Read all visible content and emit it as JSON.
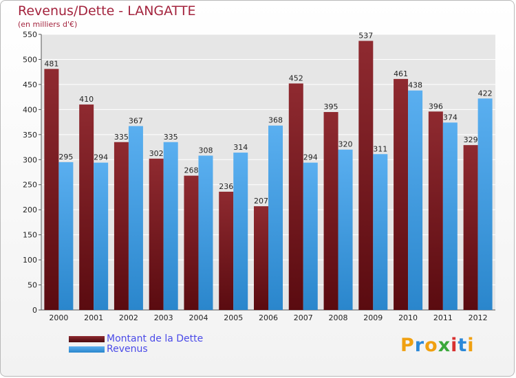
{
  "chart_data": {
    "type": "bar",
    "title": "Revenus/Dette - LANGATTE",
    "subtitle": "(en milliers d'€)",
    "categories": [
      "2000",
      "2001",
      "2002",
      "2003",
      "2004",
      "2005",
      "2006",
      "2007",
      "2008",
      "2009",
      "2010",
      "2011",
      "2012"
    ],
    "series": [
      {
        "name": "Montant de la Dette",
        "color": "#7a1a1f",
        "values": [
          481,
          410,
          335,
          302,
          268,
          236,
          207,
          452,
          395,
          537,
          461,
          396,
          329
        ]
      },
      {
        "name": "Revenus",
        "color": "#3d9be0",
        "values": [
          295,
          294,
          367,
          335,
          308,
          314,
          368,
          294,
          320,
          311,
          438,
          374,
          422
        ]
      }
    ],
    "ylim": [
      0,
      550
    ],
    "yticks": [
      0,
      50,
      100,
      150,
      200,
      250,
      300,
      350,
      400,
      450,
      500,
      550
    ],
    "grid": true,
    "xlabel": "",
    "ylabel": "",
    "legend_position": "bottom-left"
  },
  "logo": {
    "letters": [
      "P",
      "r",
      "o",
      "x",
      "i",
      "t",
      "i"
    ],
    "colors": [
      "#f0a010",
      "#2b88d8",
      "#f0a010",
      "#3aa83a",
      "#d83030",
      "#2b88d8",
      "#f0a010"
    ]
  }
}
